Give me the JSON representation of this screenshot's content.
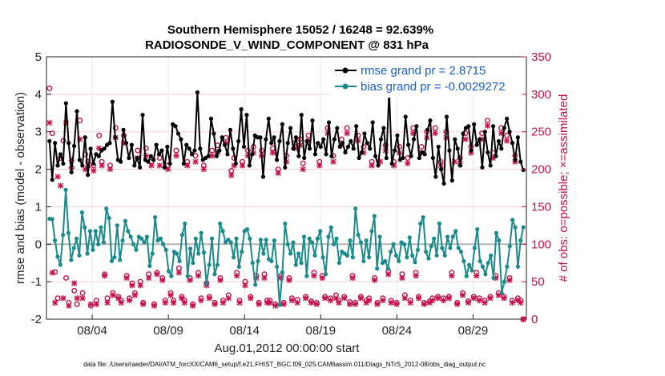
{
  "chart_data": {
    "type": "line",
    "title": "Southern Hemisphere 15052 / 16248 = 92.639%",
    "subtitle": "RADIOSONDE_V_WIND_COMPONENT @ 831 hPa",
    "xlabel": "Aug.01,2012 00:00:00 start",
    "ylabel": "rmse and bias (model - observation)",
    "y2label": "# of obs: o=possible; ×=assimilated",
    "xlim": [
      0,
      31.5
    ],
    "ylim": [
      -2,
      5
    ],
    "y2lim": [
      0,
      350
    ],
    "xtick_values": [
      3,
      8,
      13,
      18,
      23,
      28
    ],
    "xtick_labels": [
      "08/04",
      "08/09",
      "08/14",
      "08/19",
      "08/24",
      "08/29"
    ],
    "ytick_labels": [
      "-2",
      "-1",
      "0",
      "1",
      "2",
      "3",
      "4",
      "5"
    ],
    "y2tick_labels": [
      "0",
      "50",
      "100",
      "150",
      "200",
      "250",
      "300",
      "350"
    ],
    "footnote": "data file: /Users/raeder/DAI/ATM_forcXX/CAM6_setup/f.e21.FHIST_BGC.f09_025.CAM6assim.011/Diags_NTrS_2012-08/obs_diag_output.nc",
    "series": [
      {
        "name": "rmse grand pr = 2.8715",
        "color": "#000000",
        "values": [
          2.75,
          1.72,
          2.7,
          2.1,
          2.4,
          2.15,
          3.76,
          2.7,
          1.92,
          2.62,
          3.55,
          2.25,
          2.1,
          2.85,
          1.85,
          2.55,
          2.15,
          2.4,
          2.35,
          2.5,
          2.55,
          2.65,
          2.7,
          3.8,
          2.85,
          2.25,
          2.2,
          3.05,
          2.7,
          2.3,
          2.65,
          2.1,
          2.3,
          2.05,
          3.45,
          2.25,
          2.2,
          2.35,
          2.25,
          2.65,
          2.4,
          2.5,
          2.05,
          2.6,
          2.15,
          3.2,
          3.15,
          2.95,
          2.8,
          2.15,
          2.65,
          2.55,
          2.4,
          2.5,
          4.05,
          2.55,
          2.25,
          2.3,
          2.35,
          3.35,
          2.95,
          2.35,
          2.5,
          2.85,
          2.65,
          2.4,
          3.05,
          2.55,
          2.15,
          2.75,
          3.6,
          2.6,
          3.45,
          2.1,
          2.4,
          2.9,
          2.85,
          2.85,
          1.8,
          2.8,
          3.35,
          2.7,
          2.85,
          2.25,
          2.75,
          3.2,
          2.05,
          2.7,
          3.1,
          2.55,
          2.85,
          2.35,
          3.45,
          2.3,
          2.75,
          2.55,
          3.3,
          2.4,
          2.7,
          2.6,
          2.8,
          2.4,
          3.25,
          2.35,
          2.8,
          3.1,
          2.6,
          2.7,
          2.45,
          2.6,
          2.75,
          2.55,
          3.15,
          2.3,
          2.45,
          2.95,
          2.7,
          2.55,
          3.25,
          2.35,
          2.1,
          2.8,
          3.1,
          2.3,
          4.1,
          2.15,
          2.5,
          2.9,
          2.25,
          2.3,
          3.4,
          2.65,
          2.35,
          2.8,
          3.15,
          2.3,
          2.45,
          2.4,
          3.05,
          3.3,
          2.3,
          1.8,
          2.6,
          2.0,
          1.62,
          3.4,
          2.5,
          1.7,
          2.8,
          2.55,
          2.1,
          2.95,
          3.1,
          3.15,
          2.5,
          3.2,
          2.65,
          2.8,
          2.05,
          3.0,
          2.45,
          2.1,
          3.15,
          2.35,
          2.75,
          2.55,
          3.1,
          3.35,
          3.0,
          2.7,
          2.25,
          2.85,
          2.2,
          1.98
        ]
      },
      {
        "name": "bias grand pr = -0.0029272",
        "color": "#1a8a8a",
        "values": [
          0.68,
          0.67,
          0.1,
          -0.33,
          -0.55,
          0.25,
          1.45,
          0.3,
          -0.42,
          -0.1,
          0.15,
          -0.3,
          0.85,
          0.45,
          -0.25,
          0.35,
          -0.15,
          0.35,
          0.0,
          0.45,
          0.05,
          0.95,
          0.7,
          -0.45,
          -0.35,
          0.5,
          -0.42,
          0.1,
          0.62,
          0.35,
          0.2,
          0.0,
          -0.15,
          0.2,
          0.15,
          0.05,
          0.2,
          -0.58,
          -0.25,
          0.72,
          0.1,
          0.15,
          0.0,
          -0.15,
          -0.72,
          -0.85,
          -0.2,
          -0.25,
          -0.45,
          0.25,
          0.55,
          -0.85,
          -0.12,
          -0.5,
          0.15,
          -0.25,
          0.3,
          -0.22,
          -1.05,
          -0.55,
          0.15,
          -0.8,
          -0.55,
          0.55,
          0.35,
          0.05,
          0.12,
          0.05,
          -0.35,
          0.15,
          -0.6,
          -0.2,
          0.35,
          0.4,
          0.15,
          -0.5,
          -1.08,
          -0.45,
          0.12,
          -0.25,
          0.12,
          -0.4,
          -0.45,
          0.1,
          -0.6,
          -1.62,
          -0.75,
          0.55,
          0.0,
          -0.25,
          0.05,
          -0.55,
          -0.25,
          -0.5,
          0.2,
          -0.85,
          0.15,
          0.05,
          -0.3,
          0.15,
          0.35,
          -0.35,
          -0.8,
          0.2,
          0.45,
          0.0,
          0.15,
          -0.5,
          -0.2,
          -0.25,
          -0.3,
          0.1,
          -0.35,
          0.95,
          0.25,
          0.05,
          -0.45,
          0.1,
          -0.35,
          0.35,
          0.75,
          -0.65,
          0.2,
          -0.5,
          -0.45,
          -0.65,
          -0.2,
          0.0,
          -0.3,
          -0.45,
          0.05,
          0.0,
          -0.35,
          0.18,
          -0.3,
          -0.48,
          -0.15,
          0.55,
          0.72,
          -0.2,
          -0.38,
          -0.05,
          0.15,
          -0.3,
          0.55,
          -0.1,
          -0.3,
          0.2,
          -0.1,
          0.2,
          0.35,
          -0.1,
          -0.2,
          -0.45,
          -0.85,
          -0.55,
          -0.7,
          -0.1,
          0.4,
          -0.45,
          -0.6,
          -0.8,
          -0.5,
          -0.3,
          -0.9,
          0.3,
          0.1,
          -1.3,
          -1.0,
          -0.6,
          -0.05,
          0.65,
          0.45,
          -0.6,
          0.1,
          0.45
        ]
      },
      {
        "name": "possible obs",
        "color": "#c8104a",
        "axis": "right",
        "marker": "o",
        "values": [
          308,
          248,
          63,
          28,
          215,
          238,
          55,
          22,
          202,
          38,
          20,
          265,
          35,
          220,
          210,
          18,
          205,
          25,
          245,
          210,
          60,
          28,
          205,
          35,
          255,
          30,
          25,
          245,
          58,
          28,
          48,
          35,
          225,
          50,
          22,
          228,
          60,
          210,
          20,
          62,
          215,
          55,
          25,
          205,
          35,
          25,
          225,
          68,
          30,
          25,
          210,
          55,
          20,
          218,
          62,
          28,
          205,
          48,
          30,
          225,
          22,
          232,
          55,
          25,
          242,
          32,
          198,
          215,
          62,
          25,
          210,
          50,
          225,
          30,
          230,
          58,
          22,
          225,
          60,
          25,
          25,
          228,
          20,
          200,
          58,
          22,
          218,
          55,
          28,
          235,
          26,
          240,
          208,
          30,
          245,
          24,
          62,
          22,
          210,
          58,
          30,
          255,
          28,
          218,
          32,
          25,
          240,
          30,
          255,
          23,
          58,
          22,
          245,
          30,
          230,
          25,
          28,
          210,
          55,
          22,
          300,
          28,
          232,
          64,
          25,
          210,
          22,
          230,
          60,
          32,
          215,
          25,
          255,
          62,
          30,
          230,
          22,
          250,
          24,
          28,
          255,
          30,
          210,
          28,
          250,
          30,
          62,
          300,
          22,
          215,
          35,
          248,
          24,
          230,
          30,
          62,
          28,
          248,
          25,
          265,
          30,
          222,
          58,
          35,
          255,
          30,
          245,
          55,
          25,
          218,
          28,
          25,
          0
        ]
      },
      {
        "name": "assimilated obs",
        "color": "#c8104a",
        "axis": "right",
        "marker": "x",
        "values": [
          262,
          62,
          22,
          190,
          178,
          28,
          262,
          18,
          212,
          48,
          28,
          240,
          28,
          200,
          205,
          20,
          198,
          20,
          228,
          205,
          58,
          22,
          200,
          32,
          242,
          28,
          22,
          235,
          55,
          25,
          45,
          32,
          215,
          45,
          20,
          218,
          55,
          205,
          18,
          60,
          205,
          52,
          22,
          200,
          32,
          22,
          218,
          62,
          28,
          22,
          205,
          52,
          18,
          210,
          58,
          25,
          200,
          45,
          28,
          218,
          20,
          222,
          52,
          22,
          235,
          28,
          192,
          205,
          58,
          22,
          205,
          45,
          218,
          28,
          222,
          55,
          20,
          218,
          55,
          22,
          22,
          222,
          18,
          195,
          55,
          20,
          210,
          52,
          25,
          228,
          22,
          232,
          200,
          28,
          238,
          22,
          58,
          20,
          205,
          55,
          28,
          248,
          25,
          210,
          28,
          22,
          232,
          28,
          248,
          20,
          55,
          20,
          238,
          28,
          222,
          22,
          25,
          205,
          52,
          20,
          210,
          25,
          225,
          60,
          22,
          205,
          20,
          222,
          55,
          28,
          208,
          22,
          248,
          58,
          28,
          222,
          20,
          242,
          22,
          25,
          248,
          28,
          205,
          25,
          242,
          28,
          58,
          210,
          20,
          208,
          32,
          240,
          22,
          222,
          28,
          58,
          25,
          240,
          22,
          258,
          28,
          215,
          55,
          32,
          248,
          28,
          238,
          52,
          22,
          210,
          25,
          22,
          0
        ]
      }
    ]
  }
}
